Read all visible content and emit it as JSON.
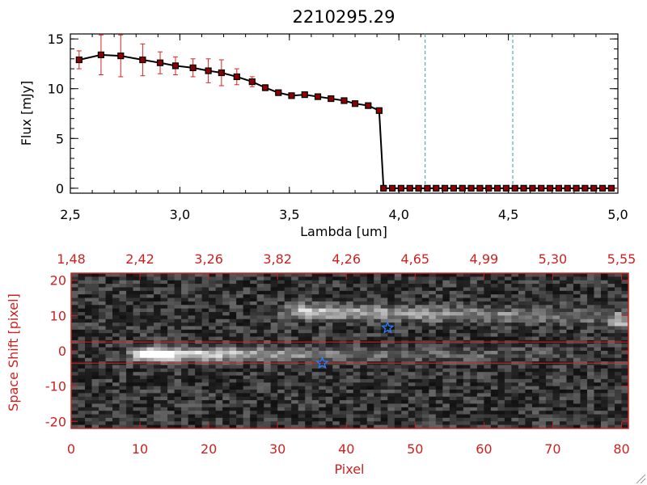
{
  "chart_data": [
    {
      "type": "line",
      "title": "2210295.29",
      "xlabel": "Lambda [um]",
      "ylabel": "Flux [mJy]",
      "xlim": [
        2.5,
        5.0
      ],
      "ylim": [
        -0.5,
        15.5
      ],
      "x_ticks": [
        "2.5",
        "3.0",
        "3.5",
        "4.0",
        "4.5",
        "5.0"
      ],
      "y_ticks": [
        "0",
        "5",
        "10",
        "15"
      ],
      "grid": false,
      "series": [
        {
          "x": [
            2.54,
            2.64,
            2.73,
            2.83,
            2.91,
            2.98,
            3.06,
            3.13,
            3.19,
            3.26,
            3.33,
            3.39,
            3.45,
            3.51,
            3.57,
            3.63,
            3.69,
            3.75,
            3.8,
            3.86,
            3.91,
            3.93,
            3.97,
            4.01,
            4.05,
            4.09,
            4.13,
            4.17,
            4.21,
            4.25,
            4.29,
            4.33,
            4.37,
            4.41,
            4.45,
            4.49,
            4.53,
            4.57,
            4.61,
            4.65,
            4.69,
            4.73,
            4.77,
            4.81,
            4.85,
            4.89,
            4.93,
            4.97
          ],
          "y": [
            12.9,
            13.4,
            13.3,
            12.9,
            12.6,
            12.3,
            12.1,
            11.8,
            11.6,
            11.2,
            10.7,
            10.1,
            9.6,
            9.3,
            9.4,
            9.2,
            9.0,
            8.8,
            8.5,
            8.3,
            7.8,
            0,
            0,
            0,
            0,
            0,
            0,
            0,
            0,
            0,
            0,
            0,
            0,
            0,
            0,
            0,
            0,
            0,
            0,
            0,
            0,
            0,
            0,
            0,
            0,
            0,
            0,
            0
          ],
          "yerr": [
            0.9,
            2.0,
            2.1,
            1.6,
            1.1,
            0.9,
            0.9,
            1.2,
            1.3,
            0.8,
            0.5,
            0.3,
            0.2,
            0.15,
            0.15,
            0.2,
            0.2,
            0.2,
            0.2,
            0.2,
            0.2,
            0,
            0,
            0,
            0,
            0,
            0,
            0,
            0,
            0,
            0,
            0,
            0,
            0,
            0,
            0,
            0,
            0,
            0,
            0,
            0,
            0,
            0,
            0,
            0,
            0,
            0,
            0
          ],
          "line_color": "#000000",
          "marker_color": "#8b0000",
          "error_color": "#dd2222"
        }
      ],
      "vlines": [
        {
          "x": 4.12,
          "color": "#2aa0a8",
          "style": "dashed"
        },
        {
          "x": 4.52,
          "color": "#2aa0a8",
          "style": "dashed"
        }
      ],
      "hline": {
        "y": 0,
        "color": "#dd2222",
        "style": "dashed"
      }
    },
    {
      "type": "heatmap",
      "colormap": "grayscale",
      "xlabel": "Pixel",
      "ylabel": "Space Shift [pixel]",
      "xlim": [
        0,
        81
      ],
      "ylim": [
        -22,
        22
      ],
      "x_ticks": [
        "0",
        "10",
        "20",
        "30",
        "40",
        "50",
        "60",
        "70",
        "80"
      ],
      "y_ticks": [
        "-20",
        "-10",
        "0",
        "10",
        "20"
      ],
      "top_axis_ticks": [
        "1.48",
        "2.42",
        "3.26",
        "3.82",
        "4.26",
        "4.65",
        "4.99",
        "5.30",
        "5.55"
      ],
      "axis_color": "#cc2222",
      "extraction_bounds": [
        -3.5,
        2.5
      ],
      "sources": [
        {
          "x": 12,
          "y": -1,
          "peak": 1.0
        },
        {
          "x": 34,
          "y": 11,
          "peak": 0.75
        }
      ],
      "star_markers": [
        {
          "x": 36.5,
          "y": -3.5,
          "color": "#2a7fff"
        },
        {
          "x": 46.0,
          "y": 6.5,
          "color": "#2a7fff"
        }
      ]
    }
  ]
}
